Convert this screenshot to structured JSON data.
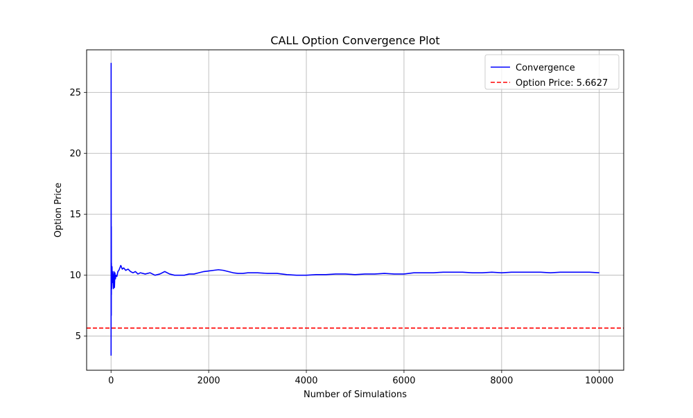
{
  "chart_data": {
    "type": "line",
    "title": "CALL Option Convergence Plot",
    "xlabel": "Number of Simulations",
    "ylabel": "Option Price",
    "xlim": [
      -500,
      10500
    ],
    "ylim": [
      2.2,
      28.5
    ],
    "xticks": [
      0,
      2000,
      4000,
      6000,
      8000,
      10000
    ],
    "yticks": [
      5,
      10,
      15,
      20,
      25
    ],
    "grid": true,
    "legend_position": "upper right",
    "series": [
      {
        "name": "Convergence",
        "color": "#0000ff",
        "style": "solid",
        "x": [
          1,
          2,
          3,
          4,
          5,
          6,
          7,
          8,
          10,
          12,
          15,
          20,
          25,
          30,
          40,
          50,
          60,
          70,
          80,
          90,
          100,
          120,
          140,
          160,
          180,
          200,
          230,
          260,
          300,
          350,
          400,
          450,
          500,
          550,
          600,
          700,
          800,
          900,
          1000,
          1100,
          1200,
          1300,
          1400,
          1500,
          1600,
          1700,
          1800,
          1900,
          2000,
          2100,
          2200,
          2300,
          2400,
          2500,
          2600,
          2700,
          2800,
          3000,
          3200,
          3400,
          3600,
          3800,
          4000,
          4200,
          4400,
          4600,
          4800,
          5000,
          5200,
          5400,
          5600,
          5800,
          6000,
          6200,
          6400,
          6600,
          6800,
          7000,
          7200,
          7400,
          7600,
          7800,
          8000,
          8200,
          8400,
          8600,
          8800,
          9000,
          9200,
          9400,
          9600,
          9800,
          10000
        ],
        "y": [
          3.4,
          27.4,
          18.0,
          12.5,
          6.7,
          14.0,
          8.4,
          11.0,
          9.2,
          10.4,
          8.9,
          10.7,
          9.4,
          10.3,
          9.8,
          8.9,
          10.3,
          9.0,
          10.2,
          9.7,
          10.0,
          9.9,
          10.3,
          10.4,
          10.6,
          10.8,
          10.5,
          10.6,
          10.4,
          10.5,
          10.3,
          10.2,
          10.3,
          10.1,
          10.2,
          10.1,
          10.2,
          10.0,
          10.1,
          10.3,
          10.1,
          10.0,
          10.0,
          10.0,
          10.1,
          10.1,
          10.2,
          10.3,
          10.35,
          10.4,
          10.45,
          10.4,
          10.3,
          10.2,
          10.15,
          10.15,
          10.2,
          10.2,
          10.15,
          10.15,
          10.05,
          10.0,
          10.0,
          10.05,
          10.05,
          10.1,
          10.1,
          10.05,
          10.1,
          10.1,
          10.15,
          10.1,
          10.1,
          10.2,
          10.2,
          10.2,
          10.25,
          10.25,
          10.25,
          10.2,
          10.2,
          10.25,
          10.2,
          10.25,
          10.25,
          10.25,
          10.25,
          10.2,
          10.25,
          10.25,
          10.25,
          10.25,
          10.2
        ]
      },
      {
        "name": "Option Price: 5.6627",
        "color": "#ff0000",
        "style": "dashed",
        "type": "hline",
        "y": 5.6627
      }
    ]
  }
}
